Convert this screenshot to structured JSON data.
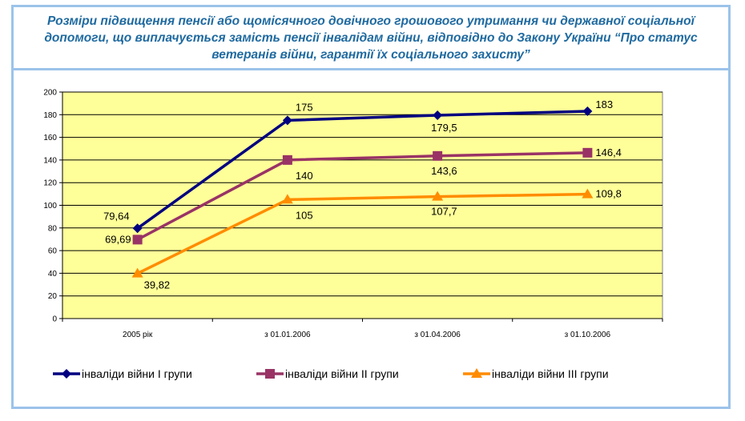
{
  "chart_data": {
    "type": "line",
    "title": "Розміри підвищення пенсії або щомісячного довічного грошового утримання чи державної соціальної допомоги,  що виплачується замість пенсії інвалідам війни, відповідно до Закону України “Про статус ветеранів війни, гарантії їх соціального захисту”",
    "categories": [
      "2005 рік",
      "з 01.01.2006",
      "з 01.04.2006",
      "з 01.10.2006"
    ],
    "ylim": [
      0,
      200
    ],
    "yticks": [
      0,
      20,
      40,
      60,
      80,
      100,
      120,
      140,
      160,
      180,
      200
    ],
    "grid": true,
    "plot_background": "#ffff99",
    "legend_position": "bottom",
    "series": [
      {
        "name": "інваліди війни I групи",
        "values": [
          79.64,
          175,
          179.5,
          183
        ],
        "labels": [
          "79,64",
          "175",
          "179,5",
          "183"
        ],
        "color": "#000080",
        "marker": "diamond"
      },
      {
        "name": "інваліди війни II групи",
        "values": [
          69.69,
          140,
          143.6,
          146.4
        ],
        "labels": [
          "69,69",
          "140",
          "143,6",
          "146,4"
        ],
        "color": "#993366",
        "marker": "square"
      },
      {
        "name": "інваліди війни III групи",
        "values": [
          39.82,
          105,
          107.7,
          109.8
        ],
        "labels": [
          "39,82",
          "105",
          "107,7",
          "109,8"
        ],
        "color": "#ff8c00",
        "marker": "triangle"
      }
    ]
  }
}
